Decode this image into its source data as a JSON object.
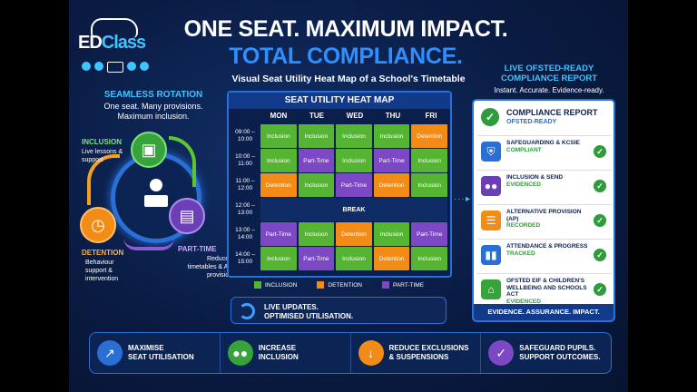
{
  "logo": {
    "text_a": "ED",
    "text_b": "Class"
  },
  "headline": {
    "line1": "ONE SEAT. MAXIMUM IMPACT.",
    "line2": "TOTAL COMPLIANCE.",
    "subtitle": "Visual Seat Utility Heat Map of a School's Timetable"
  },
  "rotation": {
    "title": "SEAMLESS ROTATION",
    "subtitle_1": "One seat. Many provisions.",
    "subtitle_2": "Maximum inclusion.",
    "inclusion_label": "INCLUSION",
    "inclusion_desc": "Live lessons & support",
    "detention_label": "DETENTION",
    "detention_desc": "Behaviour support & intervention",
    "parttime_label": "PART-TIME",
    "parttime_desc": "Reduced timetables & AP provision"
  },
  "heatmap": {
    "title": "SEAT UTILITY HEAT MAP",
    "days": [
      "MON",
      "TUE",
      "WED",
      "THU",
      "FRI"
    ],
    "rows": [
      {
        "time": "09:00 –10:00",
        "cells": [
          "Inclusion",
          "Inclusion",
          "Inclusion",
          "Inclusion",
          "Detention"
        ]
      },
      {
        "time": "10:00 –11:00",
        "cells": [
          "Inclusion",
          "Part-Time",
          "Inclusion",
          "Part-Time",
          "Inclusion"
        ]
      },
      {
        "time": "11:00 –12:00",
        "cells": [
          "Detention",
          "Inclusion",
          "Part-Time",
          "Detention",
          "Inclusion"
        ]
      },
      {
        "time": "12:00 –13:00",
        "break": "BREAK"
      },
      {
        "time": "13:00 –14:00",
        "cells": [
          "Part-Time",
          "Inclusion",
          "Detention",
          "Inclusion",
          "Part-Time"
        ]
      },
      {
        "time": "14:00 –15:00",
        "cells": [
          "Inclusion",
          "Part-Time",
          "Inclusion",
          "Detention",
          "Inclusion"
        ]
      }
    ],
    "legend": [
      "INCLUSION",
      "DETENTION",
      "PART-TIME"
    ],
    "colors": {
      "Inclusion": "#55b532",
      "Detention": "#f28c17",
      "Part-Time": "#7c48c4"
    }
  },
  "live": {
    "line1": "LIVE UPDATES.",
    "line2": "OPTIMISED UTILISATION."
  },
  "compliance": {
    "title_1": "LIVE OFSTED-READY",
    "title_2": "COMPLIANCE REPORT",
    "subtitle": "Instant. Accurate. Evidence-ready.",
    "report_title": "COMPLIANCE REPORT",
    "report_sub": "OFSTED-READY",
    "items": [
      {
        "name": "SAFEGUARDING & KCSIE",
        "status": "COMPLIANT",
        "icon": "shield-icon"
      },
      {
        "name": "INCLUSION & SEND",
        "status": "EVIDENCED",
        "icon": "people-icon"
      },
      {
        "name": "ALTERNATIVE PROVISION (AP)",
        "status": "RECORDED",
        "icon": "clipboard-icon"
      },
      {
        "name": "ATTENDANCE & PROGRESS",
        "status": "TRACKED",
        "icon": "bar-chart-icon"
      },
      {
        "name": "OFSTED EIF & CHILDREN'S WELLBEING AND SCHOOLS ACT",
        "status": "EVIDENCED",
        "icon": "institution-icon"
      }
    ],
    "footer": "EVIDENCE. ASSURANCE. IMPACT."
  },
  "bottom": [
    {
      "line1": "MAXIMISE",
      "line2": "SEAT UTILISATION",
      "color": "#2a6fd6",
      "glyph": "↗"
    },
    {
      "line1": "INCREASE",
      "line2": "INCLUSION",
      "color": "#37a33b",
      "glyph": "●●"
    },
    {
      "line1": "REDUCE EXCLUSIONS",
      "line2": "& SUSPENSIONS",
      "color": "#f28c17",
      "glyph": "↓"
    },
    {
      "line1": "SAFEGUARD PUPILS.",
      "line2": "SUPPORT OUTCOMES.",
      "color": "#7c48c4",
      "glyph": "✓"
    }
  ]
}
